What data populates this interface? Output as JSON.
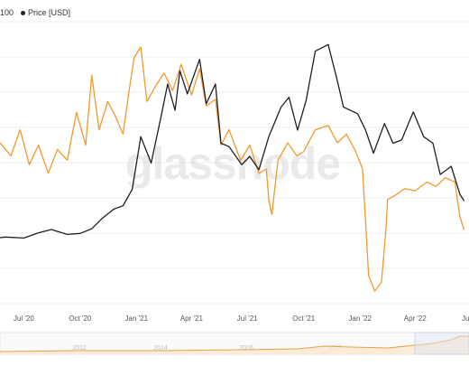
{
  "legend": {
    "left_label": "100",
    "series_label": "Price [USD]"
  },
  "watermark": "glassnode",
  "colors": {
    "price": "#1f1f1f",
    "metric": "#f2992e",
    "grid": "#ececec",
    "navigator_line": "#e8a04a",
    "navigator_fill": "#fbe7cf",
    "background": "#ffffff"
  },
  "chart_data": {
    "type": "line",
    "x_ticks": [
      "Jul '20",
      "Oct '20",
      "Jan '21",
      "Apr '21",
      "Jul '21",
      "Oct '21",
      "Jan '22",
      "Apr '22",
      "Ju"
    ],
    "navigator_ticks": [
      "2012",
      "2014",
      "2016",
      "2018",
      "2020",
      "2022"
    ],
    "series": [
      {
        "name": "Price [USD]",
        "points": [
          [
            "2020-04-20",
            7000
          ],
          [
            "2020-05-10",
            9000
          ],
          [
            "2020-06-01",
            9500
          ],
          [
            "2020-07-01",
            9200
          ],
          [
            "2020-07-25",
            10800
          ],
          [
            "2020-08-15",
            11800
          ],
          [
            "2020-09-10",
            10300
          ],
          [
            "2020-10-01",
            10600
          ],
          [
            "2020-10-20",
            12000
          ],
          [
            "2020-11-05",
            15000
          ],
          [
            "2020-11-25",
            18000
          ],
          [
            "2020-12-10",
            19000
          ],
          [
            "2020-12-25",
            24000
          ],
          [
            "2021-01-08",
            40000
          ],
          [
            "2021-01-25",
            32000
          ],
          [
            "2021-02-10",
            46000
          ],
          [
            "2021-02-21",
            56000
          ],
          [
            "2021-03-05",
            48000
          ],
          [
            "2021-03-13",
            60000
          ],
          [
            "2021-03-25",
            53000
          ],
          [
            "2021-04-14",
            63500
          ],
          [
            "2021-04-25",
            50000
          ],
          [
            "2021-05-10",
            56000
          ],
          [
            "2021-05-19",
            38000
          ],
          [
            "2021-06-01",
            37000
          ],
          [
            "2021-06-22",
            31500
          ],
          [
            "2021-07-05",
            34000
          ],
          [
            "2021-07-20",
            30000
          ],
          [
            "2021-08-05",
            40000
          ],
          [
            "2021-08-25",
            49000
          ],
          [
            "2021-09-07",
            52000
          ],
          [
            "2021-09-21",
            42000
          ],
          [
            "2021-10-05",
            51000
          ],
          [
            "2021-10-20",
            66000
          ],
          [
            "2021-11-10",
            68000
          ],
          [
            "2021-11-25",
            57000
          ],
          [
            "2021-12-05",
            49000
          ],
          [
            "2021-12-28",
            47000
          ],
          [
            "2022-01-10",
            42000
          ],
          [
            "2022-01-23",
            35000
          ],
          [
            "2022-02-10",
            44000
          ],
          [
            "2022-02-24",
            38000
          ],
          [
            "2022-03-10",
            39000
          ],
          [
            "2022-03-29",
            47500
          ],
          [
            "2022-04-15",
            40000
          ],
          [
            "2022-04-30",
            38000
          ],
          [
            "2022-05-12",
            28500
          ],
          [
            "2022-05-30",
            31000
          ],
          [
            "2022-06-13",
            22500
          ],
          [
            "2022-06-20",
            20500
          ]
        ]
      },
      {
        "name": "",
        "points": [
          [
            "2020-04-20",
            0.62
          ],
          [
            "2020-05-01",
            0.48
          ],
          [
            "2020-05-20",
            0.57
          ],
          [
            "2020-06-10",
            0.5
          ],
          [
            "2020-06-25",
            0.62
          ],
          [
            "2020-07-10",
            0.46
          ],
          [
            "2020-07-25",
            0.55
          ],
          [
            "2020-08-10",
            0.42
          ],
          [
            "2020-08-25",
            0.53
          ],
          [
            "2020-09-10",
            0.48
          ],
          [
            "2020-09-25",
            0.7
          ],
          [
            "2020-10-10",
            0.55
          ],
          [
            "2020-10-20",
            0.87
          ],
          [
            "2020-11-01",
            0.62
          ],
          [
            "2020-11-15",
            0.75
          ],
          [
            "2020-11-28",
            0.68
          ],
          [
            "2020-12-10",
            0.6
          ],
          [
            "2020-12-20",
            0.8
          ],
          [
            "2020-12-28",
            0.95
          ],
          [
            "2021-01-08",
            1.0
          ],
          [
            "2021-01-18",
            0.75
          ],
          [
            "2021-02-01",
            0.82
          ],
          [
            "2021-02-15",
            0.88
          ],
          [
            "2021-03-01",
            0.8
          ],
          [
            "2021-03-15",
            0.92
          ],
          [
            "2021-04-01",
            0.78
          ],
          [
            "2021-04-14",
            0.9
          ],
          [
            "2021-04-25",
            0.73
          ],
          [
            "2021-05-10",
            0.76
          ],
          [
            "2021-05-19",
            0.55
          ],
          [
            "2021-06-01",
            0.62
          ],
          [
            "2021-06-20",
            0.48
          ],
          [
            "2021-07-05",
            0.55
          ],
          [
            "2021-07-20",
            0.42
          ],
          [
            "2021-08-01",
            0.44
          ],
          [
            "2021-08-05",
            0.3
          ],
          [
            "2021-08-10",
            0.23
          ],
          [
            "2021-08-20",
            0.48
          ],
          [
            "2021-09-05",
            0.56
          ],
          [
            "2021-09-20",
            0.5
          ],
          [
            "2021-10-01",
            0.52
          ],
          [
            "2021-10-20",
            0.62
          ],
          [
            "2021-11-10",
            0.64
          ],
          [
            "2021-11-25",
            0.56
          ],
          [
            "2021-12-10",
            0.6
          ],
          [
            "2021-12-25",
            0.52
          ],
          [
            "2022-01-05",
            0.44
          ],
          [
            "2022-01-10",
            0.2
          ],
          [
            "2022-01-15",
            -0.05
          ],
          [
            "2022-01-25",
            -0.12
          ],
          [
            "2022-02-05",
            -0.08
          ],
          [
            "2022-02-12",
            0.15
          ],
          [
            "2022-02-15",
            0.3
          ],
          [
            "2022-02-28",
            0.32
          ],
          [
            "2022-03-15",
            0.35
          ],
          [
            "2022-04-01",
            0.34
          ],
          [
            "2022-04-20",
            0.38
          ],
          [
            "2022-05-05",
            0.36
          ],
          [
            "2022-05-20",
            0.4
          ],
          [
            "2022-06-05",
            0.38
          ],
          [
            "2022-06-13",
            0.22
          ],
          [
            "2022-06-20",
            0.16
          ]
        ]
      }
    ],
    "grid": true,
    "legend_position": "top-left"
  }
}
